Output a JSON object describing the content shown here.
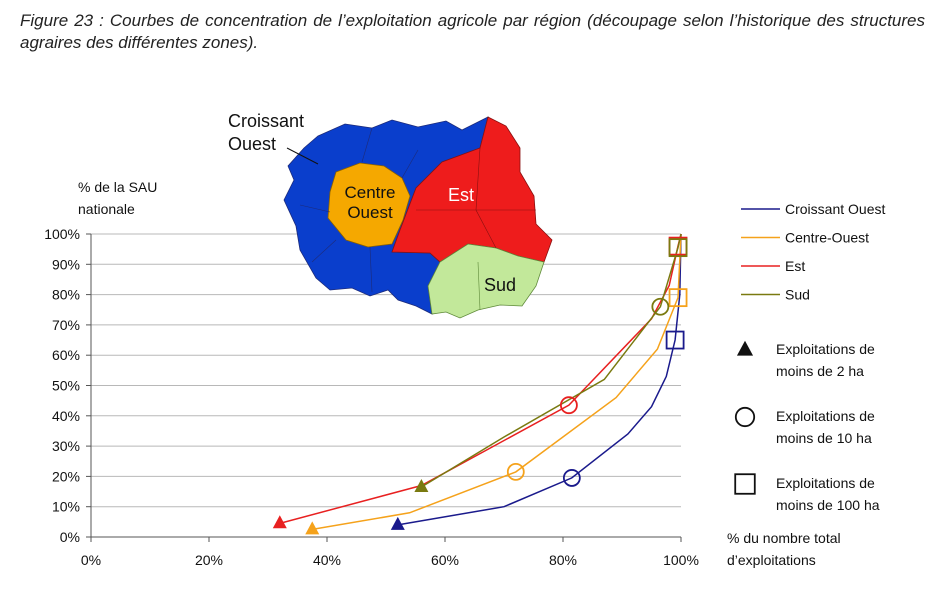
{
  "caption": "Figure 23 : Courbes de concentration de l’exploitation agricole par région (découpage selon l’historique des structures agraires des différentes zones).",
  "chart_data": {
    "type": "line",
    "ylabel_lines": [
      "% de la SAU",
      "nationale"
    ],
    "xlabel_lines": [
      "% du nombre total",
      "d’exploitations"
    ],
    "xlim": [
      0,
      100
    ],
    "ylim": [
      0,
      100
    ],
    "x_ticks": [
      0,
      20,
      40,
      60,
      80,
      100
    ],
    "y_ticks": [
      0,
      10,
      20,
      30,
      40,
      50,
      60,
      70,
      80,
      90,
      100
    ],
    "x_tick_labels": [
      "0%",
      "20%",
      "40%",
      "60%",
      "80%",
      "100%"
    ],
    "y_tick_labels": [
      "0%",
      "10%",
      "20%",
      "30%",
      "40%",
      "50%",
      "60%",
      "70%",
      "80%",
      "90%",
      "100%"
    ],
    "grid": "horizontal",
    "series": [
      {
        "name": "Croissant Ouest",
        "color": "#1a1a8c",
        "points": [
          [
            52,
            4
          ],
          [
            70,
            10
          ],
          [
            81.5,
            19.5
          ],
          [
            91,
            34
          ],
          [
            95,
            43
          ],
          [
            97.5,
            53
          ],
          [
            99,
            65
          ],
          [
            99.8,
            80
          ],
          [
            100,
            100
          ]
        ],
        "markers": [
          [
            52,
            4,
            "triangle"
          ],
          [
            81.5,
            19.5,
            "circle"
          ],
          [
            99,
            65,
            "square"
          ]
        ]
      },
      {
        "name": "Centre-Ouest",
        "color": "#f5a21b",
        "points": [
          [
            37.5,
            2.5
          ],
          [
            54,
            8
          ],
          [
            72,
            21.5
          ],
          [
            89,
            46
          ],
          [
            96,
            62
          ],
          [
            99.5,
            79
          ],
          [
            100,
            100
          ]
        ],
        "markers": [
          [
            37.5,
            2.5,
            "triangle"
          ],
          [
            72,
            21.5,
            "circle"
          ],
          [
            99.5,
            79,
            "square"
          ]
        ]
      },
      {
        "name": "Est",
        "color": "#e82020",
        "points": [
          [
            32,
            4.5
          ],
          [
            56,
            17
          ],
          [
            81,
            43.5
          ],
          [
            95,
            72
          ],
          [
            98,
            83
          ],
          [
            99.5,
            96
          ],
          [
            100,
            100
          ]
        ],
        "markers": [
          [
            32,
            4.5,
            "triangle"
          ],
          [
            81,
            43.5,
            "circle"
          ],
          [
            99.5,
            96,
            "square"
          ]
        ]
      },
      {
        "name": "Sud",
        "color": "#7a7a10",
        "points": [
          [
            56,
            16.5
          ],
          [
            70,
            33
          ],
          [
            87,
            52
          ],
          [
            96.5,
            76
          ],
          [
            99.5,
            95.5
          ],
          [
            100,
            100
          ]
        ],
        "markers": [
          [
            56,
            16.5,
            "triangle"
          ],
          [
            96.5,
            76,
            "circle"
          ],
          [
            99.5,
            95.5,
            "square"
          ]
        ]
      }
    ],
    "marker_legend": [
      {
        "shape": "triangle",
        "lines": [
          "Exploitations de",
          "moins de 2 ha"
        ]
      },
      {
        "shape": "circle",
        "lines": [
          "Exploitations de",
          "moins de 10 ha"
        ]
      },
      {
        "shape": "square",
        "lines": [
          "Exploitations de",
          "moins de 100 ha"
        ]
      }
    ]
  },
  "map": {
    "regions": [
      {
        "label_lines": [
          "Croissant",
          "Ouest"
        ],
        "color": "#0a3ecc"
      },
      {
        "label_lines": [
          "Centre",
          "Ouest"
        ],
        "color": "#f5a800"
      },
      {
        "label_lines": [
          "Est"
        ],
        "color": "#ee1c1c"
      },
      {
        "label_lines": [
          "Sud"
        ],
        "color": "#c2e89a"
      }
    ]
  }
}
